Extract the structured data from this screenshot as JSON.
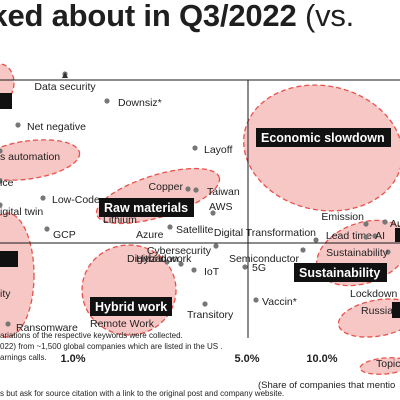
{
  "title": "lked about in Q3/2022",
  "title_suffix": "(vs.",
  "notes": [
    "ariations of the respective keywords were collected.",
    "022) from ~1,500 global companies which are listed in the US .",
    "arnings calls.",
    "s but ask for source citation with a link to the original post and company website."
  ],
  "axis_title": "(Share of companies that mentio",
  "chart_data": {
    "type": "scatter",
    "x_scale": "log",
    "xlabel": "(Share of companies that mentio",
    "x_ticks": [
      "1.0%",
      "5.0%",
      "10.0%"
    ],
    "x_tick_values": [
      1,
      5,
      10
    ],
    "grid": false,
    "colors": {
      "bubble_fill": "#f4b4b1",
      "bubble_stroke": "#e8524a",
      "point": "#777777",
      "cluster_label_bg": "#111111"
    },
    "clusters": [
      "Economic slowdown",
      "Raw materials",
      "Hybrid work",
      "Sustainability"
    ],
    "points": [
      {
        "label": "Data security",
        "x": 0.75
      },
      {
        "label": "Downsiz*",
        "x": 1.3
      },
      {
        "label": "Net negative",
        "x": 0.66
      },
      {
        "label": "s automation",
        "x": 0.6
      },
      {
        "label": "Layoff",
        "x": 2.35
      },
      {
        "label": "ice",
        "x": 0.6
      },
      {
        "label": "Copper",
        "x": 1.95
      },
      {
        "label": "Taiwan",
        "x": 2.2
      },
      {
        "label": "Low-Code",
        "x": 0.7
      },
      {
        "label": "igital twin",
        "x": 0.6
      },
      {
        "label": "AWS",
        "x": 2.1
      },
      {
        "label": "Lithium",
        "x": 1.15
      },
      {
        "label": "GCP",
        "x": 0.7
      },
      {
        "label": "Azure",
        "x": 1.8
      },
      {
        "label": "Satellite",
        "x": 1.9
      },
      {
        "label": "Digital Transformation",
        "x": 3.9
      },
      {
        "label": "Emission",
        "x": 10.5
      },
      {
        "label": "Au",
        "x": 13.5
      },
      {
        "label": "Lead time",
        "x": 6.8
      },
      {
        "label": "AI",
        "x": 12.0
      },
      {
        "label": "Cybersecurity",
        "x": 2.15
      },
      {
        "label": "Semiconductor",
        "x": 5.6
      },
      {
        "label": "Digitization",
        "x": 1.7
      },
      {
        "label": "Hybrid work",
        "x": 1.55
      },
      {
        "label": "IoT",
        "x": 1.75
      },
      {
        "label": "5G",
        "x": 3.4
      },
      {
        "label": "Sustainability",
        "x": 12.5
      },
      {
        "label": "ity",
        "x": 0.6
      },
      {
        "label": "Lockdown",
        "x": 10.0
      },
      {
        "label": "Ransomware",
        "x": 0.6
      },
      {
        "label": "Remote Work",
        "x": 1.25
      },
      {
        "label": "Transitory",
        "x": 2.4
      },
      {
        "label": "Vaccin*",
        "x": 5.2
      },
      {
        "label": "Russia",
        "x": 12.0
      },
      {
        "label": "Topic",
        "x": 13.5
      }
    ]
  }
}
